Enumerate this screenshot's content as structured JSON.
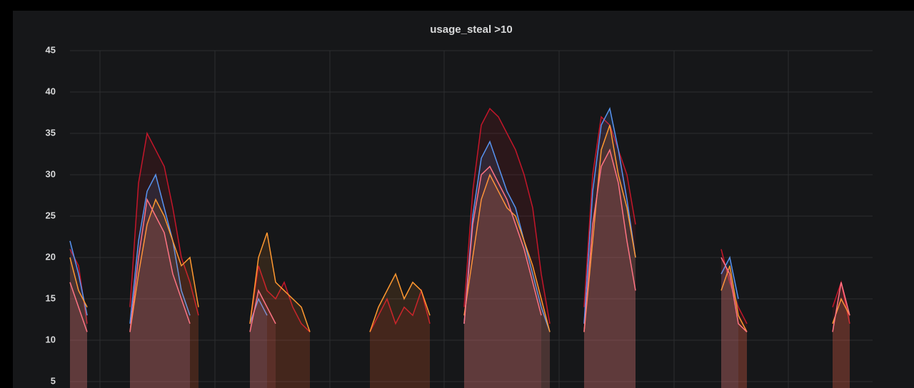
{
  "chart_data": {
    "type": "line",
    "title": "usage_steal >10",
    "categories": [
      null,
      null,
      null,
      null,
      null,
      null,
      null,
      null,
      null,
      null,
      null,
      null,
      null,
      null,
      null,
      null,
      null,
      null,
      null,
      null,
      null,
      null,
      null,
      null,
      null,
      null,
      null,
      null,
      null,
      null,
      null,
      null,
      null,
      null,
      null,
      null,
      null,
      null,
      null,
      null,
      null,
      null,
      null,
      null,
      null,
      null,
      null,
      null,
      null,
      null,
      null,
      null,
      null,
      null,
      null,
      null,
      null,
      null,
      null,
      null,
      null,
      null,
      null,
      null,
      null,
      null,
      null,
      null,
      null,
      null,
      null,
      null,
      null,
      null,
      null,
      null,
      null,
      null,
      null,
      null,
      null,
      null,
      null,
      null,
      null,
      null,
      null,
      null,
      null,
      null,
      null,
      null,
      null,
      null
    ],
    "ylim": [
      5,
      45
    ],
    "yticks": [
      5,
      10,
      15,
      20,
      25,
      30,
      35,
      40,
      45
    ],
    "grid": true,
    "series": [
      {
        "color": "#c4162a",
        "values": [
          21,
          19,
          12,
          null,
          null,
          null,
          null,
          14,
          29,
          35,
          33,
          31,
          26,
          20,
          17,
          13,
          null,
          null,
          null,
          null,
          null,
          12,
          19,
          16,
          15,
          17,
          14,
          12,
          11,
          null,
          null,
          null,
          null,
          null,
          null,
          11,
          13,
          15,
          12,
          14,
          13,
          16,
          12,
          null,
          null,
          null,
          14,
          28,
          36,
          38,
          37,
          35,
          33,
          30,
          26,
          18,
          12,
          null,
          null,
          null,
          14,
          30,
          37,
          36,
          33,
          30,
          24,
          null,
          null,
          null,
          null,
          null,
          null,
          null,
          null,
          null,
          21,
          17,
          14,
          12,
          null,
          null,
          null,
          null,
          null,
          null,
          null,
          null,
          null,
          14,
          17,
          12,
          null,
          null
        ]
      },
      {
        "color": "#5794f2",
        "values": [
          22,
          18,
          13,
          null,
          null,
          null,
          null,
          12,
          22,
          28,
          30,
          26,
          22,
          16,
          13,
          null,
          null,
          null,
          null,
          null,
          null,
          12,
          15,
          13,
          null,
          null,
          null,
          null,
          null,
          null,
          null,
          null,
          null,
          null,
          null,
          null,
          null,
          null,
          null,
          null,
          null,
          null,
          null,
          null,
          null,
          null,
          12,
          25,
          32,
          34,
          31,
          28,
          26,
          22,
          18,
          14,
          11,
          null,
          null,
          null,
          12,
          28,
          36,
          38,
          33,
          27,
          20,
          null,
          null,
          null,
          null,
          null,
          null,
          null,
          null,
          null,
          18,
          20,
          15,
          null,
          null,
          null,
          null,
          null,
          null,
          null,
          null,
          null,
          null,
          null,
          null,
          null,
          null,
          null
        ]
      },
      {
        "color": "#ff9830",
        "values": [
          20,
          16,
          14,
          null,
          null,
          null,
          null,
          11,
          18,
          24,
          27,
          25,
          22,
          19,
          20,
          14,
          null,
          null,
          null,
          null,
          null,
          12,
          20,
          23,
          17,
          16,
          15,
          14,
          11,
          null,
          null,
          null,
          null,
          null,
          null,
          11,
          14,
          16,
          18,
          15,
          17,
          16,
          13,
          null,
          null,
          null,
          13,
          20,
          27,
          30,
          28,
          26,
          25,
          22,
          19,
          15,
          11,
          null,
          null,
          null,
          11,
          22,
          33,
          36,
          30,
          26,
          20,
          null,
          null,
          null,
          null,
          null,
          null,
          null,
          null,
          null,
          16,
          19,
          13,
          11,
          null,
          null,
          null,
          null,
          null,
          null,
          null,
          null,
          null,
          12,
          15,
          13,
          null,
          null
        ]
      },
      {
        "color": "#ff7383",
        "values": [
          17,
          14,
          11,
          null,
          null,
          null,
          null,
          11,
          20,
          27,
          25,
          23,
          18,
          15,
          12,
          null,
          null,
          null,
          null,
          null,
          null,
          11,
          16,
          14,
          12,
          null,
          null,
          null,
          null,
          null,
          null,
          null,
          null,
          null,
          null,
          null,
          null,
          null,
          null,
          null,
          null,
          null,
          null,
          null,
          null,
          null,
          12,
          24,
          30,
          31,
          29,
          27,
          24,
          21,
          17,
          13,
          null,
          null,
          null,
          null,
          11,
          24,
          31,
          33,
          29,
          22,
          16,
          null,
          null,
          null,
          null,
          null,
          null,
          null,
          null,
          null,
          20,
          18,
          12,
          11,
          null,
          null,
          null,
          null,
          null,
          null,
          null,
          null,
          null,
          11,
          17,
          13,
          null,
          null
        ]
      }
    ]
  }
}
